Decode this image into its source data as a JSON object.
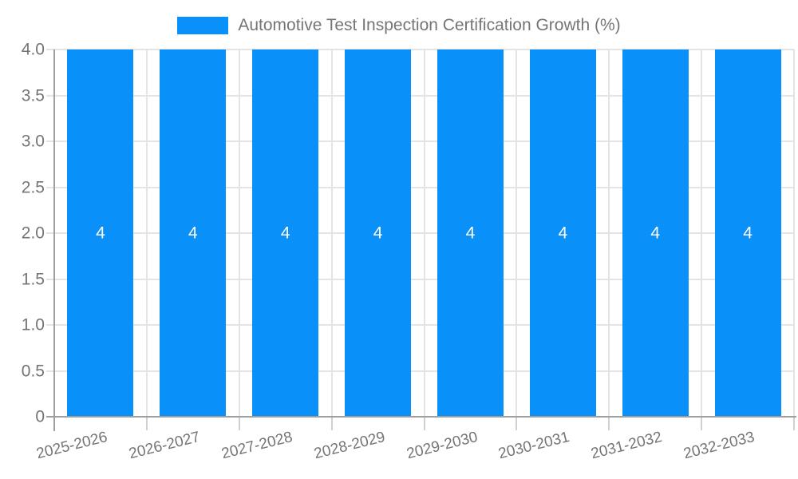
{
  "page": {
    "background": "#ffffff"
  },
  "legend": {
    "swatch_color": "#0990f9",
    "label": "Automotive Test Inspection Certification Growth (%)"
  },
  "chart_data": {
    "type": "bar",
    "title": "Automotive Test Inspection Certification Growth (%)",
    "categories": [
      "2025-2026",
      "2026-2027",
      "2027-2028",
      "2028-2029",
      "2029-2030",
      "2030-2031",
      "2031-2032",
      "2032-2033"
    ],
    "series": [
      {
        "name": "Automotive Test Inspection Certification Growth (%)",
        "values": [
          4,
          4,
          4,
          4,
          4,
          4,
          4,
          4
        ]
      }
    ],
    "bar_value_labels": [
      "4",
      "4",
      "4",
      "4",
      "4",
      "4",
      "4",
      "4"
    ],
    "xlabel": "",
    "ylabel": "",
    "ylim": [
      0,
      4
    ],
    "ytick_labels": [
      "0",
      "0.5",
      "1.0",
      "1.5",
      "2.0",
      "2.5",
      "3.0",
      "3.5",
      "4.0"
    ],
    "ytick_values": [
      0,
      0.5,
      1.0,
      1.5,
      2.0,
      2.5,
      3.0,
      3.5,
      4.0
    ],
    "grid": true,
    "legend_position": "top",
    "x_label_rotation_deg": -14,
    "colors": {
      "bar": "#0990f9",
      "value_label": "#ffffff",
      "gridline": "#e4e4e4",
      "axis_line": "#9f9f9f",
      "tick_mark": "#d0d0d0",
      "tick_label": "#757575"
    }
  }
}
